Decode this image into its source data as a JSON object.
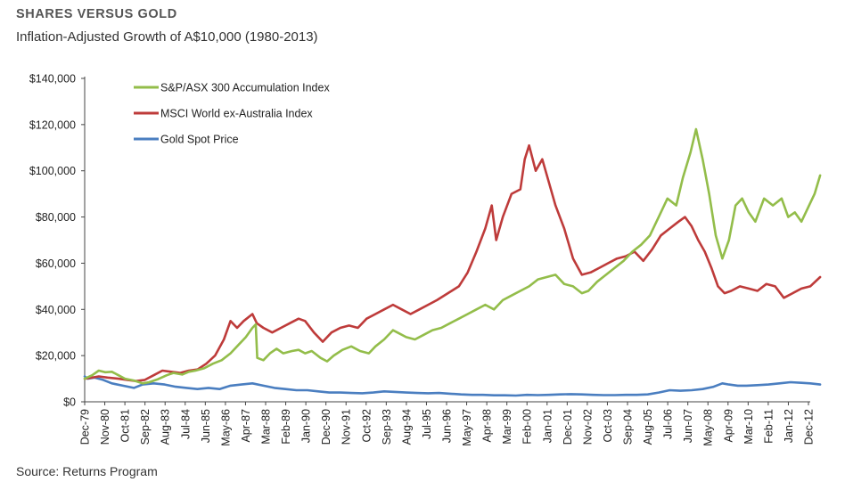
{
  "header": {
    "title": "SHARES VERSUS GOLD",
    "subtitle": "Inflation-Adjusted Growth of A$10,000 (1980-2013)"
  },
  "footer": {
    "source": "Source: Returns Program"
  },
  "colors": {
    "asx": "#93BD4A",
    "msci": "#BE3B3A",
    "gold": "#4A7EC0"
  },
  "chart_data": {
    "type": "line",
    "title": "Inflation-Adjusted Growth of A$10,000 (1980-2013)",
    "xlabel": "",
    "ylabel": "",
    "ylim": [
      0,
      140000
    ],
    "yticks": [
      "$0",
      "$20,000",
      "$40,000",
      "$60,000",
      "$80,000",
      "$100,000",
      "$120,000",
      "$140,000"
    ],
    "xticks": [
      "Dec-79",
      "Nov-80",
      "Oct-81",
      "Sep-82",
      "Aug-83",
      "Jul-84",
      "Jun-85",
      "May-86",
      "Apr-87",
      "Mar-88",
      "Feb-89",
      "Jan-90",
      "Dec-90",
      "Nov-91",
      "Oct-92",
      "Sep-93",
      "Aug-94",
      "Jul-95",
      "Jun-96",
      "May-97",
      "Apr-98",
      "Mar-99",
      "Feb-00",
      "Jan-01",
      "Dec-01",
      "Nov-02",
      "Oct-03",
      "Sep-04",
      "Aug-05",
      "Jul-06",
      "Jun-07",
      "May-08",
      "Apr-09",
      "Mar-10",
      "Feb-11",
      "Jan-12",
      "Dec-12"
    ],
    "grid": false,
    "legend_position": "top-left",
    "series": [
      {
        "name": "S&P/ASX 300 Accumulation Index",
        "color_key": "asx",
        "points": [
          [
            1979.96,
            10000
          ],
          [
            1980.3,
            11500
          ],
          [
            1980.6,
            13500
          ],
          [
            1980.9,
            12800
          ],
          [
            1981.2,
            13000
          ],
          [
            1981.5,
            11500
          ],
          [
            1981.8,
            10000
          ],
          [
            1982.2,
            9200
          ],
          [
            1982.6,
            8000
          ],
          [
            1982.9,
            8500
          ],
          [
            1983.3,
            9800
          ],
          [
            1983.7,
            11500
          ],
          [
            1984.0,
            12500
          ],
          [
            1984.4,
            11800
          ],
          [
            1984.7,
            13000
          ],
          [
            1985.0,
            13500
          ],
          [
            1985.4,
            14500
          ],
          [
            1985.8,
            16500
          ],
          [
            1986.2,
            18000
          ],
          [
            1986.6,
            21000
          ],
          [
            1987.0,
            25000
          ],
          [
            1987.3,
            28000
          ],
          [
            1987.6,
            32000
          ],
          [
            1987.75,
            33500
          ],
          [
            1987.82,
            19000
          ],
          [
            1988.1,
            18000
          ],
          [
            1988.4,
            21000
          ],
          [
            1988.7,
            23000
          ],
          [
            1989.0,
            21000
          ],
          [
            1989.4,
            22000
          ],
          [
            1989.7,
            22500
          ],
          [
            1990.0,
            21000
          ],
          [
            1990.3,
            22000
          ],
          [
            1990.7,
            19000
          ],
          [
            1991.0,
            17500
          ],
          [
            1991.3,
            20000
          ],
          [
            1991.7,
            22500
          ],
          [
            1992.1,
            24000
          ],
          [
            1992.5,
            22000
          ],
          [
            1992.9,
            21000
          ],
          [
            1993.2,
            24000
          ],
          [
            1993.6,
            27000
          ],
          [
            1994.0,
            31000
          ],
          [
            1994.2,
            30000
          ],
          [
            1994.6,
            28000
          ],
          [
            1995.0,
            27000
          ],
          [
            1995.4,
            29000
          ],
          [
            1995.8,
            31000
          ],
          [
            1996.2,
            32000
          ],
          [
            1996.6,
            34000
          ],
          [
            1997.0,
            36000
          ],
          [
            1997.4,
            38000
          ],
          [
            1997.8,
            40000
          ],
          [
            1998.2,
            42000
          ],
          [
            1998.6,
            40000
          ],
          [
            1999.0,
            44000
          ],
          [
            1999.4,
            46000
          ],
          [
            1999.8,
            48000
          ],
          [
            2000.2,
            50000
          ],
          [
            2000.6,
            53000
          ],
          [
            2001.0,
            54000
          ],
          [
            2001.4,
            55000
          ],
          [
            2001.8,
            51000
          ],
          [
            2002.2,
            50000
          ],
          [
            2002.6,
            47000
          ],
          [
            2002.9,
            48000
          ],
          [
            2003.3,
            52000
          ],
          [
            2003.7,
            55000
          ],
          [
            2004.1,
            58000
          ],
          [
            2004.5,
            61000
          ],
          [
            2004.9,
            65000
          ],
          [
            2005.3,
            68000
          ],
          [
            2005.7,
            72000
          ],
          [
            2006.1,
            80000
          ],
          [
            2006.5,
            88000
          ],
          [
            2006.9,
            85000
          ],
          [
            2007.2,
            97000
          ],
          [
            2007.55,
            108000
          ],
          [
            2007.8,
            118000
          ],
          [
            2008.1,
            105000
          ],
          [
            2008.4,
            90000
          ],
          [
            2008.7,
            72000
          ],
          [
            2009.0,
            62000
          ],
          [
            2009.3,
            70000
          ],
          [
            2009.6,
            85000
          ],
          [
            2009.9,
            88000
          ],
          [
            2010.2,
            82000
          ],
          [
            2010.5,
            78000
          ],
          [
            2010.9,
            88000
          ],
          [
            2011.3,
            85000
          ],
          [
            2011.7,
            88000
          ],
          [
            2012.0,
            80000
          ],
          [
            2012.3,
            82000
          ],
          [
            2012.6,
            78000
          ],
          [
            2012.9,
            84000
          ],
          [
            2013.2,
            90000
          ],
          [
            2013.45,
            98000
          ]
        ]
      },
      {
        "name": "MSCI World ex-Australia Index",
        "color_key": "msci",
        "points": [
          [
            1979.96,
            10000
          ],
          [
            1980.3,
            10500
          ],
          [
            1980.6,
            11000
          ],
          [
            1981.0,
            10500
          ],
          [
            1981.5,
            10000
          ],
          [
            1981.9,
            9500
          ],
          [
            1982.3,
            9000
          ],
          [
            1982.7,
            9500
          ],
          [
            1983.1,
            11500
          ],
          [
            1983.5,
            13500
          ],
          [
            1983.9,
            13000
          ],
          [
            1984.3,
            12500
          ],
          [
            1984.7,
            13500
          ],
          [
            1985.1,
            14000
          ],
          [
            1985.5,
            16500
          ],
          [
            1985.9,
            20000
          ],
          [
            1986.3,
            27000
          ],
          [
            1986.6,
            35000
          ],
          [
            1986.9,
            32000
          ],
          [
            1987.2,
            35000
          ],
          [
            1987.6,
            38000
          ],
          [
            1987.8,
            34000
          ],
          [
            1988.1,
            32000
          ],
          [
            1988.5,
            30000
          ],
          [
            1988.9,
            32000
          ],
          [
            1989.3,
            34000
          ],
          [
            1989.7,
            36000
          ],
          [
            1990.0,
            35000
          ],
          [
            1990.4,
            30000
          ],
          [
            1990.8,
            26000
          ],
          [
            1991.2,
            30000
          ],
          [
            1991.6,
            32000
          ],
          [
            1992.0,
            33000
          ],
          [
            1992.4,
            32000
          ],
          [
            1992.8,
            36000
          ],
          [
            1993.2,
            38000
          ],
          [
            1993.6,
            40000
          ],
          [
            1994.0,
            42000
          ],
          [
            1994.4,
            40000
          ],
          [
            1994.8,
            38000
          ],
          [
            1995.2,
            40000
          ],
          [
            1995.6,
            42000
          ],
          [
            1996.0,
            44000
          ],
          [
            1996.5,
            47000
          ],
          [
            1997.0,
            50000
          ],
          [
            1997.4,
            56000
          ],
          [
            1997.8,
            65000
          ],
          [
            1998.2,
            75000
          ],
          [
            1998.5,
            85000
          ],
          [
            1998.7,
            70000
          ],
          [
            1999.0,
            80000
          ],
          [
            1999.4,
            90000
          ],
          [
            1999.8,
            92000
          ],
          [
            2000.0,
            105000
          ],
          [
            2000.2,
            111000
          ],
          [
            2000.5,
            100000
          ],
          [
            2000.8,
            105000
          ],
          [
            2001.1,
            95000
          ],
          [
            2001.4,
            85000
          ],
          [
            2001.8,
            75000
          ],
          [
            2002.2,
            62000
          ],
          [
            2002.6,
            55000
          ],
          [
            2003.0,
            56000
          ],
          [
            2003.4,
            58000
          ],
          [
            2003.8,
            60000
          ],
          [
            2004.2,
            62000
          ],
          [
            2004.6,
            63000
          ],
          [
            2005.0,
            65000
          ],
          [
            2005.4,
            61000
          ],
          [
            2005.8,
            66000
          ],
          [
            2006.2,
            72000
          ],
          [
            2006.6,
            75000
          ],
          [
            2007.0,
            78000
          ],
          [
            2007.3,
            80000
          ],
          [
            2007.6,
            76000
          ],
          [
            2007.9,
            70000
          ],
          [
            2008.2,
            65000
          ],
          [
            2008.5,
            58000
          ],
          [
            2008.8,
            50000
          ],
          [
            2009.1,
            47000
          ],
          [
            2009.4,
            48000
          ],
          [
            2009.8,
            50000
          ],
          [
            2010.2,
            49000
          ],
          [
            2010.6,
            48000
          ],
          [
            2011.0,
            51000
          ],
          [
            2011.4,
            50000
          ],
          [
            2011.8,
            45000
          ],
          [
            2012.2,
            47000
          ],
          [
            2012.6,
            49000
          ],
          [
            2013.0,
            50000
          ],
          [
            2013.45,
            54000
          ]
        ]
      },
      {
        "name": "Gold Spot Price",
        "color_key": "gold",
        "points": [
          [
            1979.96,
            11000
          ],
          [
            1980.1,
            10000
          ],
          [
            1980.4,
            10500
          ],
          [
            1980.8,
            9500
          ],
          [
            1981.2,
            8000
          ],
          [
            1981.7,
            7000
          ],
          [
            1982.2,
            6000
          ],
          [
            1982.6,
            7500
          ],
          [
            1983.1,
            8000
          ],
          [
            1983.6,
            7500
          ],
          [
            1984.1,
            6500
          ],
          [
            1984.6,
            6000
          ],
          [
            1985.1,
            5500
          ],
          [
            1985.6,
            6000
          ],
          [
            1986.1,
            5500
          ],
          [
            1986.6,
            7000
          ],
          [
            1987.1,
            7500
          ],
          [
            1987.6,
            8000
          ],
          [
            1988.1,
            7000
          ],
          [
            1988.6,
            6000
          ],
          [
            1989.1,
            5500
          ],
          [
            1989.6,
            5000
          ],
          [
            1990.1,
            5000
          ],
          [
            1990.6,
            4500
          ],
          [
            1991.1,
            4000
          ],
          [
            1991.6,
            4000
          ],
          [
            1992.1,
            3800
          ],
          [
            1992.6,
            3700
          ],
          [
            1993.1,
            4000
          ],
          [
            1993.6,
            4500
          ],
          [
            1994.1,
            4300
          ],
          [
            1994.6,
            4000
          ],
          [
            1995.1,
            3800
          ],
          [
            1995.6,
            3700
          ],
          [
            1996.1,
            3800
          ],
          [
            1996.6,
            3500
          ],
          [
            1997.1,
            3200
          ],
          [
            1997.6,
            3000
          ],
          [
            1998.1,
            3000
          ],
          [
            1998.6,
            2800
          ],
          [
            1999.1,
            2800
          ],
          [
            1999.6,
            2700
          ],
          [
            2000.1,
            3000
          ],
          [
            2000.6,
            2900
          ],
          [
            2001.1,
            3000
          ],
          [
            2001.6,
            3200
          ],
          [
            2002.1,
            3300
          ],
          [
            2002.6,
            3200
          ],
          [
            2003.1,
            3000
          ],
          [
            2003.6,
            2900
          ],
          [
            2004.1,
            2900
          ],
          [
            2004.6,
            3000
          ],
          [
            2005.1,
            3000
          ],
          [
            2005.6,
            3200
          ],
          [
            2006.1,
            4000
          ],
          [
            2006.6,
            5000
          ],
          [
            2007.1,
            4800
          ],
          [
            2007.6,
            5000
          ],
          [
            2008.1,
            5500
          ],
          [
            2008.6,
            6500
          ],
          [
            2009.0,
            8000
          ],
          [
            2009.3,
            7500
          ],
          [
            2009.7,
            7000
          ],
          [
            2010.1,
            7000
          ],
          [
            2010.6,
            7200
          ],
          [
            2011.1,
            7500
          ],
          [
            2011.6,
            8000
          ],
          [
            2012.1,
            8500
          ],
          [
            2012.6,
            8200
          ],
          [
            2013.0,
            8000
          ],
          [
            2013.45,
            7500
          ]
        ]
      }
    ]
  }
}
